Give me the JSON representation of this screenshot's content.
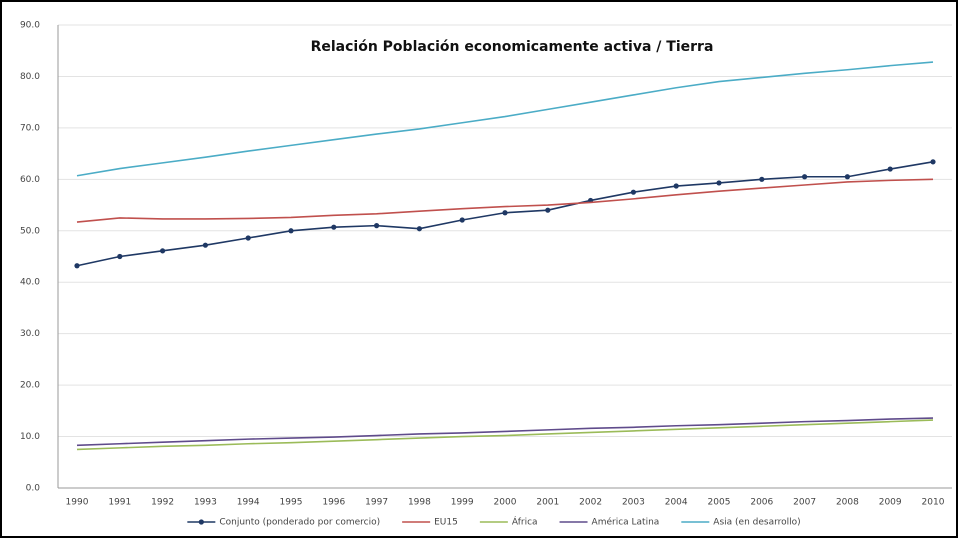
{
  "chart_data": {
    "type": "line",
    "title": "Relación Población economicamente activa / Tierra",
    "categories": [
      "1990",
      "1991",
      "1992",
      "1993",
      "1994",
      "1995",
      "1996",
      "1997",
      "1998",
      "1999",
      "2000",
      "2001",
      "2002",
      "2003",
      "2004",
      "2005",
      "2006",
      "2007",
      "2008",
      "2009",
      "2010"
    ],
    "series": [
      {
        "name": "Conjunto (ponderado por comercio)",
        "color": "#1f3864",
        "markers": true,
        "values": [
          43.2,
          45.0,
          46.1,
          47.2,
          48.6,
          50.0,
          50.7,
          51.0,
          50.4,
          52.1,
          53.5,
          54.0,
          55.9,
          57.5,
          58.7,
          59.3,
          60.0,
          60.5,
          60.5,
          62.0,
          63.4
        ]
      },
      {
        "name": "EU15",
        "color": "#c0504d",
        "markers": false,
        "values": [
          51.7,
          52.5,
          52.3,
          52.3,
          52.4,
          52.6,
          53.0,
          53.3,
          53.8,
          54.3,
          54.7,
          55.0,
          55.5,
          56.2,
          57.0,
          57.7,
          58.3,
          58.9,
          59.5,
          59.8,
          60.0
        ]
      },
      {
        "name": "África",
        "color": "#9bbb59",
        "markers": false,
        "values": [
          7.5,
          7.8,
          8.1,
          8.3,
          8.6,
          8.8,
          9.1,
          9.4,
          9.7,
          10.0,
          10.2,
          10.5,
          10.8,
          11.1,
          11.4,
          11.7,
          12.0,
          12.3,
          12.6,
          12.9,
          13.2
        ]
      },
      {
        "name": "América Latina",
        "color": "#5f4b8b",
        "markers": false,
        "values": [
          8.3,
          8.6,
          8.9,
          9.2,
          9.5,
          9.7,
          9.9,
          10.2,
          10.5,
          10.7,
          11.0,
          11.3,
          11.6,
          11.8,
          12.1,
          12.3,
          12.6,
          12.9,
          13.1,
          13.4,
          13.6
        ]
      },
      {
        "name": "Asia (en desarrollo)",
        "color": "#4bacc6",
        "markers": false,
        "values": [
          60.7,
          62.1,
          63.2,
          64.3,
          65.5,
          66.6,
          67.7,
          68.8,
          69.8,
          71.0,
          72.2,
          73.6,
          75.0,
          76.4,
          77.8,
          79.0,
          79.8,
          80.6,
          81.3,
          82.1,
          82.8
        ]
      }
    ],
    "ylim": [
      0,
      90
    ],
    "yticks": [
      {
        "value": 0,
        "label": "0.0"
      },
      {
        "value": 10,
        "label": "10.0"
      },
      {
        "value": 20,
        "label": "20.0"
      },
      {
        "value": 30,
        "label": "30.0"
      },
      {
        "value": 40,
        "label": "40.0"
      },
      {
        "value": 50,
        "label": "50.0"
      },
      {
        "value": 60,
        "label": "60.0"
      },
      {
        "value": 70,
        "label": "70.0"
      },
      {
        "value": 80,
        "label": "80.0"
      },
      {
        "value": 90,
        "label": "90.0"
      }
    ],
    "grid": true,
    "legend": "bottom"
  }
}
